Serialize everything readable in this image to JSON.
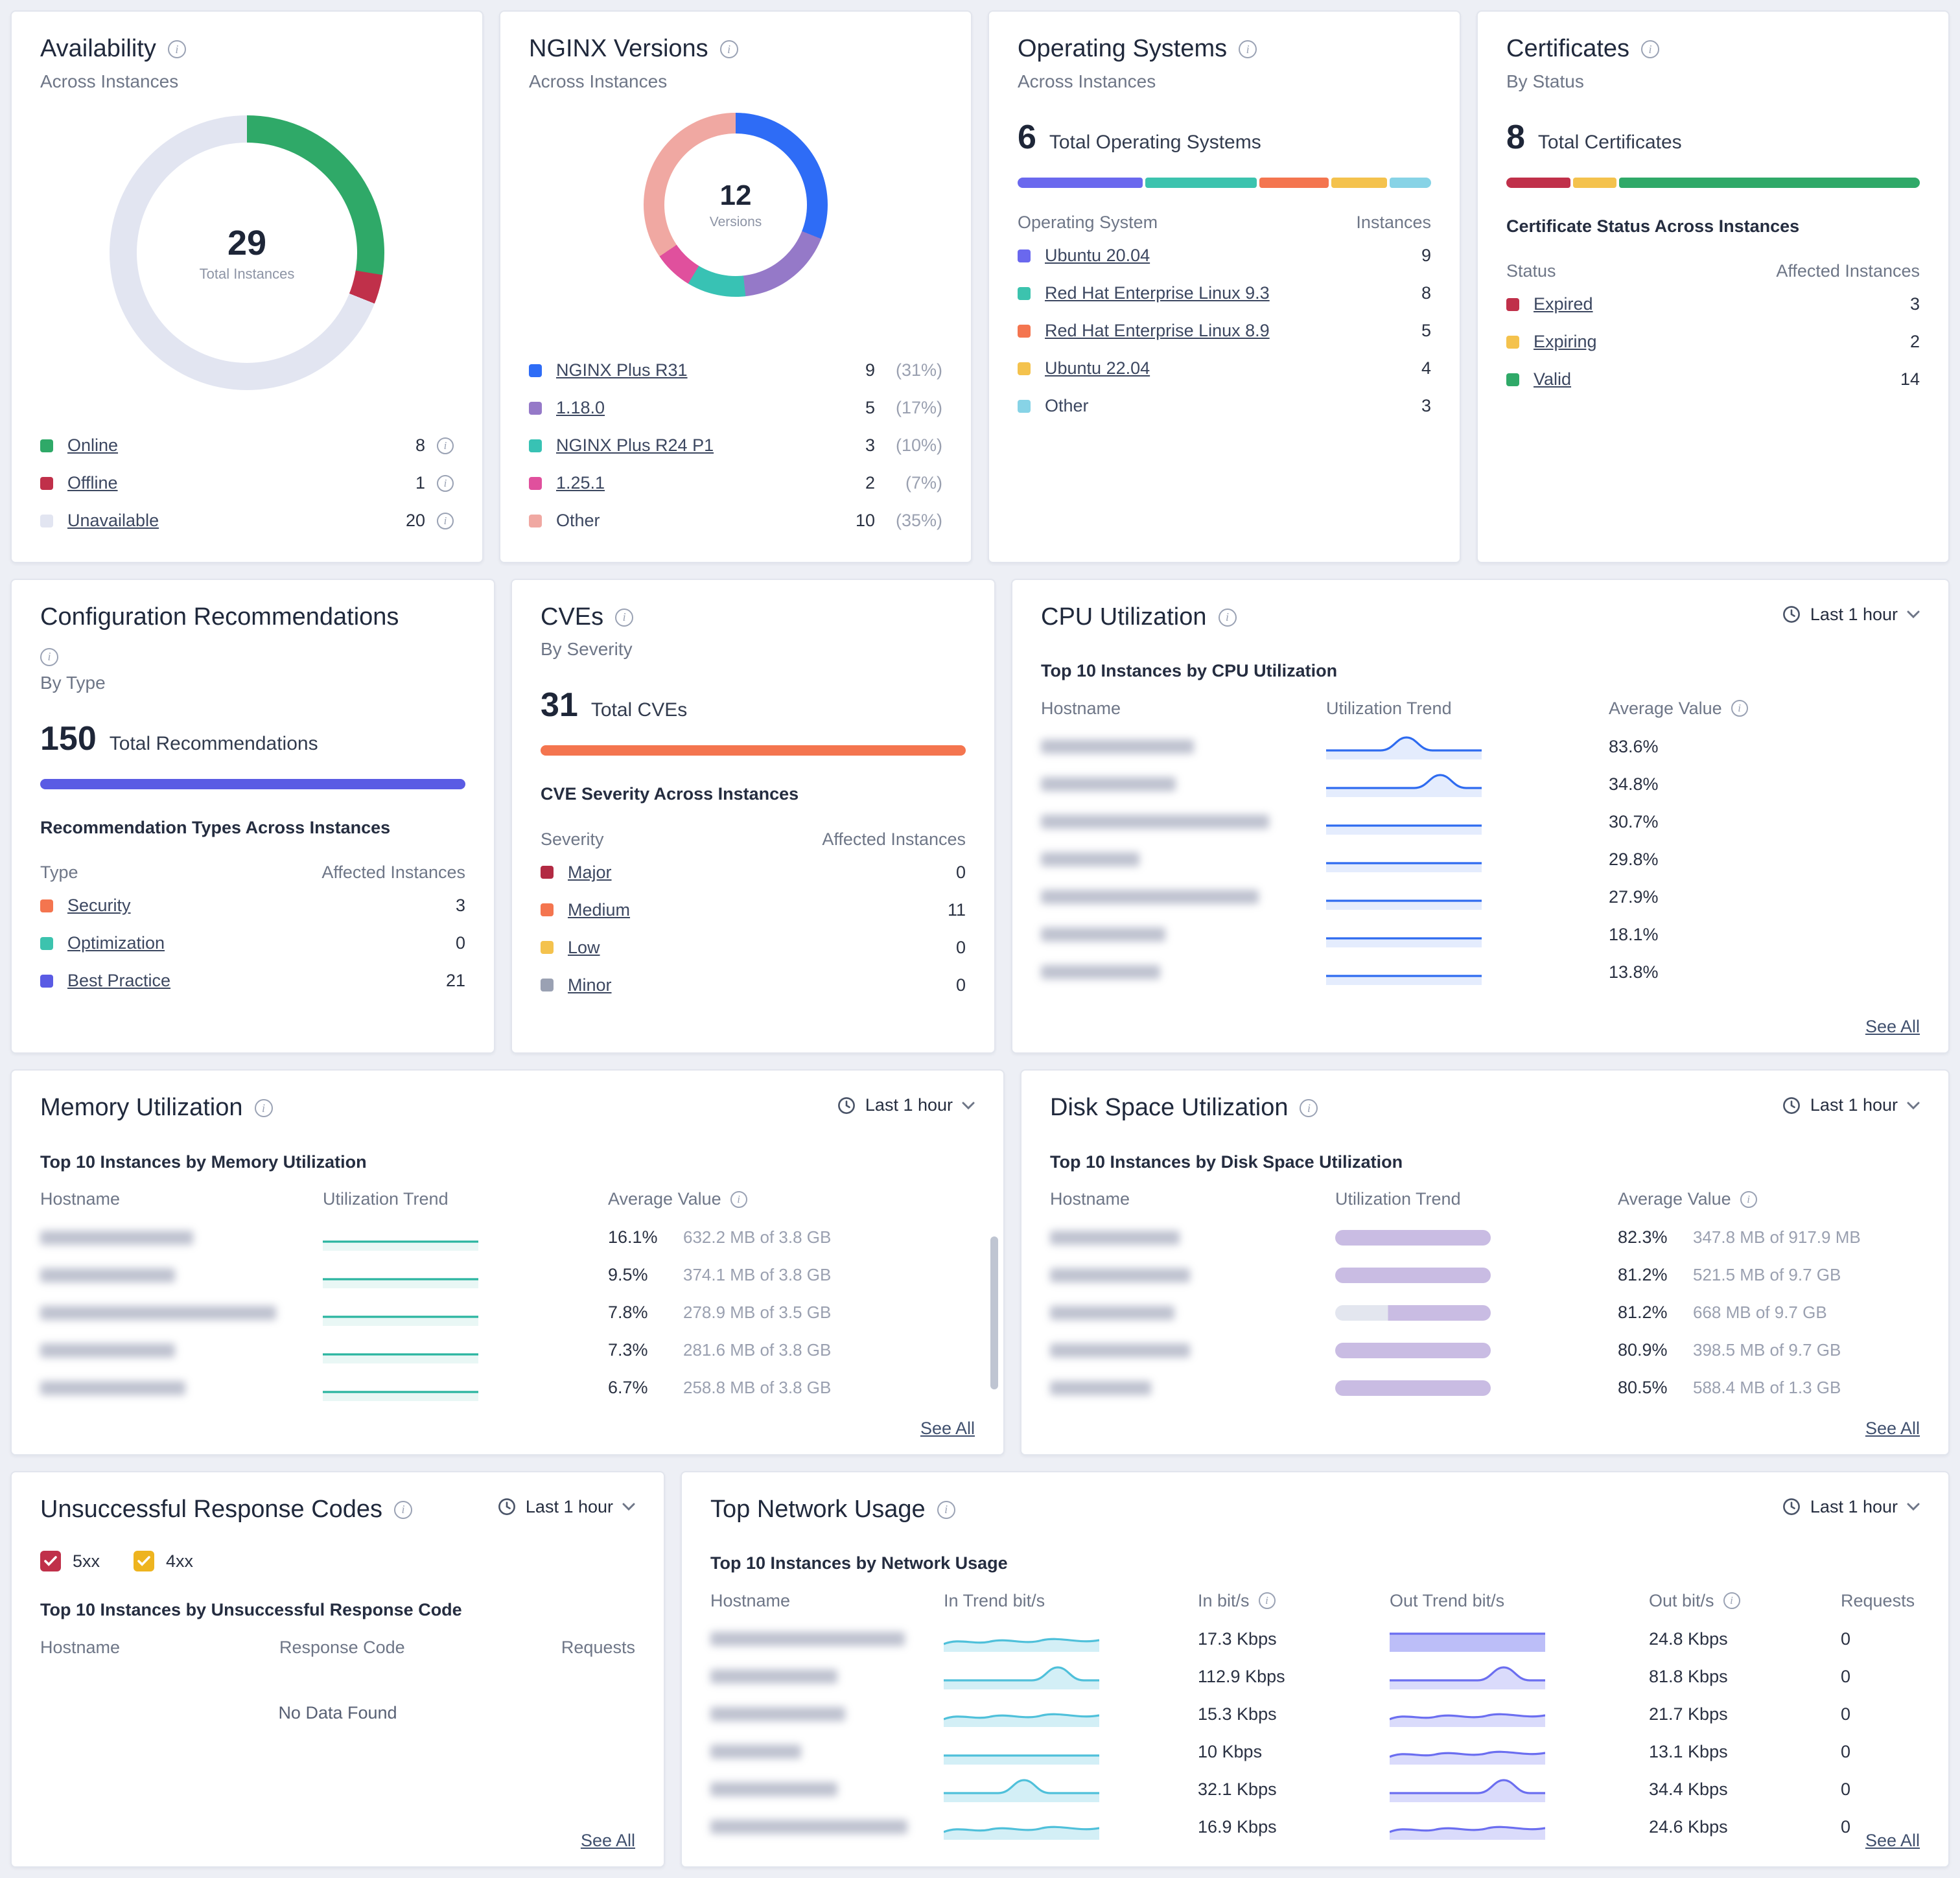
{
  "cards": {
    "availability": {
      "title": "Availability",
      "subtitle": "Across Instances",
      "total": "29",
      "total_label": "Total Instances",
      "items": [
        {
          "label": "Online",
          "value": 8,
          "color": "#2fa968"
        },
        {
          "label": "Offline",
          "value": 1,
          "color": "#c0304a"
        },
        {
          "label": "Unavailable",
          "value": 20,
          "color": "#e2e5f1"
        }
      ]
    },
    "versions": {
      "title": "NGINX Versions",
      "subtitle": "Across Instances",
      "total": "12",
      "total_label": "Versions",
      "items": [
        {
          "label": "NGINX Plus R31",
          "value": 9,
          "pct": "31%",
          "color": "#2e6cf6"
        },
        {
          "label": "1.18.0",
          "value": 5,
          "pct": "17%",
          "color": "#9579c8"
        },
        {
          "label": "NGINX Plus R24 P1",
          "value": 3,
          "pct": "10%",
          "color": "#38c2b4"
        },
        {
          "label": "1.25.1",
          "value": 2,
          "pct": "7%",
          "color": "#e0509d"
        },
        {
          "label": "Other",
          "value": 10,
          "pct": "35%",
          "color": "#f0a8a2",
          "link": false
        }
      ]
    },
    "os": {
      "title": "Operating Systems",
      "subtitle": "Across Instances",
      "total": "6",
      "total_label": "Total Operating Systems",
      "col_left": "Operating System",
      "col_right": "Instances",
      "items": [
        {
          "label": "Ubuntu 20.04",
          "value": 9,
          "color": "#6a68ee"
        },
        {
          "label": "Red Hat Enterprise Linux 9.3",
          "value": 8,
          "color": "#3cc3ae"
        },
        {
          "label": "Red Hat Enterprise Linux 8.9",
          "value": 5,
          "color": "#f4754f"
        },
        {
          "label": "Ubuntu 22.04",
          "value": 4,
          "color": "#f4c24d"
        },
        {
          "label": "Other",
          "value": 3,
          "color": "#87d3e6",
          "link": false
        }
      ]
    },
    "certificates": {
      "title": "Certificates",
      "subtitle": "By Status",
      "total": "8",
      "total_label": "Total Certificates",
      "section": "Certificate Status Across Instances",
      "col_left": "Status",
      "col_right": "Affected Instances",
      "items": [
        {
          "label": "Expired",
          "value": 3,
          "color": "#c0304a"
        },
        {
          "label": "Expiring",
          "value": 2,
          "color": "#f4c24d"
        },
        {
          "label": "Valid",
          "value": 14,
          "color": "#2fa968"
        }
      ]
    },
    "config": {
      "title": "Configuration Recommendations",
      "subtitle": "By Type",
      "total": "150",
      "total_label": "Total Recommendations",
      "section": "Recommendation Types Across Instances",
      "col_left": "Type",
      "col_right": "Affected Instances",
      "bar": [
        {
          "color": "#5a5be4",
          "value": 1
        }
      ],
      "items": [
        {
          "label": "Security",
          "value": 3,
          "color": "#f4754f"
        },
        {
          "label": "Optimization",
          "value": 0,
          "color": "#3cc3ae"
        },
        {
          "label": "Best Practice",
          "value": 21,
          "color": "#5a5be4"
        }
      ]
    },
    "cves": {
      "title": "CVEs",
      "subtitle": "By Severity",
      "total": "31",
      "total_label": "Total CVEs",
      "section": "CVE Severity Across Instances",
      "col_left": "Severity",
      "col_right": "Affected Instances",
      "bar": [
        {
          "color": "#f4754f",
          "value": 1
        }
      ],
      "items": [
        {
          "label": "Major",
          "value": 0,
          "color": "#b22a43"
        },
        {
          "label": "Medium",
          "value": 11,
          "color": "#f4754f"
        },
        {
          "label": "Low",
          "value": 0,
          "color": "#f4c24d"
        },
        {
          "label": "Minor",
          "value": 0,
          "color": "#9aa1b3"
        }
      ]
    },
    "cpu": {
      "title": "CPU Utilization",
      "time_range": "Last 1 hour",
      "section": "Top 10 Instances by CPU Utilization",
      "headers": [
        "Hostname",
        "Utilization Trend",
        "Average Value"
      ],
      "see_all": "See All",
      "rows": [
        {
          "value": "83.6%",
          "trend": "bump"
        },
        {
          "value": "34.8%",
          "trend": "bump2"
        },
        {
          "value": "30.7%",
          "trend": "flat"
        },
        {
          "value": "29.8%",
          "trend": "flat"
        },
        {
          "value": "27.9%",
          "trend": "flat"
        },
        {
          "value": "18.1%",
          "trend": "flat"
        },
        {
          "value": "13.8%",
          "trend": "flat"
        }
      ]
    },
    "memory": {
      "title": "Memory Utilization",
      "time_range": "Last 1 hour",
      "section": "Top 10 Instances by Memory Utilization",
      "headers": [
        "Hostname",
        "Utilization Trend",
        "Average Value"
      ],
      "see_all": "See All",
      "rows": [
        {
          "value": "16.1%",
          "detail": "632.2 MB of 3.8 GB",
          "trend": "flat"
        },
        {
          "value": "9.5%",
          "detail": "374.1 MB of 3.8 GB",
          "trend": "flat"
        },
        {
          "value": "7.8%",
          "detail": "278.9 MB of 3.5 GB",
          "trend": "flat"
        },
        {
          "value": "7.3%",
          "detail": "281.6 MB of 3.8 GB",
          "trend": "flat"
        },
        {
          "value": "6.7%",
          "detail": "258.8 MB of 3.8 GB",
          "trend": "flat"
        }
      ]
    },
    "disk": {
      "title": "Disk Space Utilization",
      "time_range": "Last 1 hour",
      "section": "Top 10 Instances by Disk Space Utilization",
      "headers": [
        "Hostname",
        "Utilization Trend",
        "Average Value"
      ],
      "see_all": "See All",
      "rows": [
        {
          "value": "82.3%",
          "detail": "347.8 MB of 917.9 MB",
          "trend": "bar"
        },
        {
          "value": "81.2%",
          "detail": "521.5 MB of 9.7 GB",
          "trend": "bar"
        },
        {
          "value": "81.2%",
          "detail": "668 MB of 9.7 GB",
          "trend": "stepbar"
        },
        {
          "value": "80.9%",
          "detail": "398.5 MB of 9.7 GB",
          "trend": "bar"
        },
        {
          "value": "80.5%",
          "detail": "588.4 MB of 1.3 GB",
          "trend": "bar"
        }
      ]
    },
    "responses": {
      "title": "Unsuccessful Response Codes",
      "time_range": "Last 1 hour",
      "filters": [
        {
          "label": "5xx",
          "color": "#c0304a",
          "checked": true
        },
        {
          "label": "4xx",
          "color": "#eeb41f",
          "checked": true
        }
      ],
      "section": "Top 10 Instances by Unsuccessful Response Code",
      "headers": [
        "Hostname",
        "Response Code",
        "Requests"
      ],
      "empty": "No Data Found",
      "see_all": "See All"
    },
    "network": {
      "title": "Top Network Usage",
      "time_range": "Last 1 hour",
      "section": "Top 10 Instances by Network Usage",
      "headers": [
        "Hostname",
        "In Trend bit/s",
        "In bit/s",
        "Out Trend bit/s",
        "Out bit/s",
        "Requests"
      ],
      "see_all": "See All",
      "rows": [
        {
          "in": "17.3 Kbps",
          "out": "24.8 Kbps",
          "requests": "0",
          "in_trend": "wave",
          "out_trend": "block"
        },
        {
          "in": "112.9 Kbps",
          "out": "81.8 Kbps",
          "requests": "0",
          "in_trend": "bump2",
          "out_trend": "bump2"
        },
        {
          "in": "15.3 Kbps",
          "out": "21.7 Kbps",
          "requests": "0",
          "in_trend": "wave",
          "out_trend": "wave"
        },
        {
          "in": "10 Kbps",
          "out": "13.1 Kbps",
          "requests": "0",
          "in_trend": "flat",
          "out_trend": "wave"
        },
        {
          "in": "32.1 Kbps",
          "out": "34.4 Kbps",
          "requests": "0",
          "in_trend": "bump",
          "out_trend": "bump2"
        },
        {
          "in": "16.9 Kbps",
          "out": "24.6 Kbps",
          "requests": "0",
          "in_trend": "wave",
          "out_trend": "wave"
        }
      ]
    }
  }
}
